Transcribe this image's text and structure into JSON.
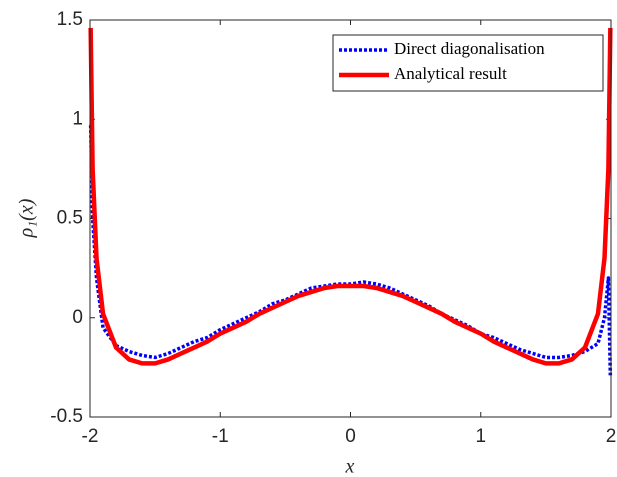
{
  "chart_data": {
    "type": "line",
    "xlabel": "x",
    "ylabel": "ρ₁(x)",
    "x": [
      -1.995,
      -1.98,
      -1.95,
      -1.9,
      -1.8,
      -1.7,
      -1.6,
      -1.5,
      -1.4,
      -1.3,
      -1.2,
      -1.1,
      -1.0,
      -0.9,
      -0.8,
      -0.7,
      -0.6,
      -0.5,
      -0.4,
      -0.3,
      -0.2,
      -0.1,
      0,
      0.1,
      0.2,
      0.3,
      0.4,
      0.5,
      0.6,
      0.7,
      0.8,
      0.9,
      1.0,
      1.1,
      1.2,
      1.3,
      1.4,
      1.5,
      1.6,
      1.7,
      1.8,
      1.9,
      1.95,
      1.98,
      1.995
    ],
    "series": [
      {
        "name": "Direct diagonalisation",
        "color": "#0000ff",
        "style": "dotted",
        "values": [
          0.97,
          0.5,
          0.2,
          -0.05,
          -0.14,
          -0.17,
          -0.19,
          -0.2,
          -0.18,
          -0.15,
          -0.12,
          -0.1,
          -0.06,
          -0.03,
          0.0,
          0.03,
          0.07,
          0.09,
          0.12,
          0.15,
          0.16,
          0.17,
          0.17,
          0.18,
          0.17,
          0.15,
          0.12,
          0.09,
          0.06,
          0.02,
          -0.01,
          -0.04,
          -0.08,
          -0.1,
          -0.13,
          -0.16,
          -0.18,
          -0.2,
          -0.2,
          -0.19,
          -0.17,
          -0.13,
          0.0,
          0.2,
          -0.29
        ]
      },
      {
        "name": "Analytical result",
        "color": "#ff0000",
        "style": "solid",
        "values": [
          1.46,
          0.75,
          0.3,
          0.02,
          -0.15,
          -0.21,
          -0.23,
          -0.23,
          -0.21,
          -0.18,
          -0.15,
          -0.12,
          -0.08,
          -0.05,
          -0.02,
          0.02,
          0.05,
          0.08,
          0.11,
          0.13,
          0.15,
          0.16,
          0.16,
          0.16,
          0.15,
          0.13,
          0.11,
          0.08,
          0.05,
          0.02,
          -0.02,
          -0.05,
          -0.08,
          -0.12,
          -0.15,
          -0.18,
          -0.21,
          -0.23,
          -0.23,
          -0.21,
          -0.15,
          0.02,
          0.3,
          0.75,
          1.46
        ]
      }
    ],
    "xlim": [
      -2,
      2
    ],
    "xticks": [
      -2,
      -1,
      0,
      1,
      2
    ],
    "ylim": [
      -0.5,
      1.5
    ],
    "yticks": [
      -0.5,
      0,
      0.5,
      1,
      1.5
    ],
    "legend": "top-right"
  }
}
